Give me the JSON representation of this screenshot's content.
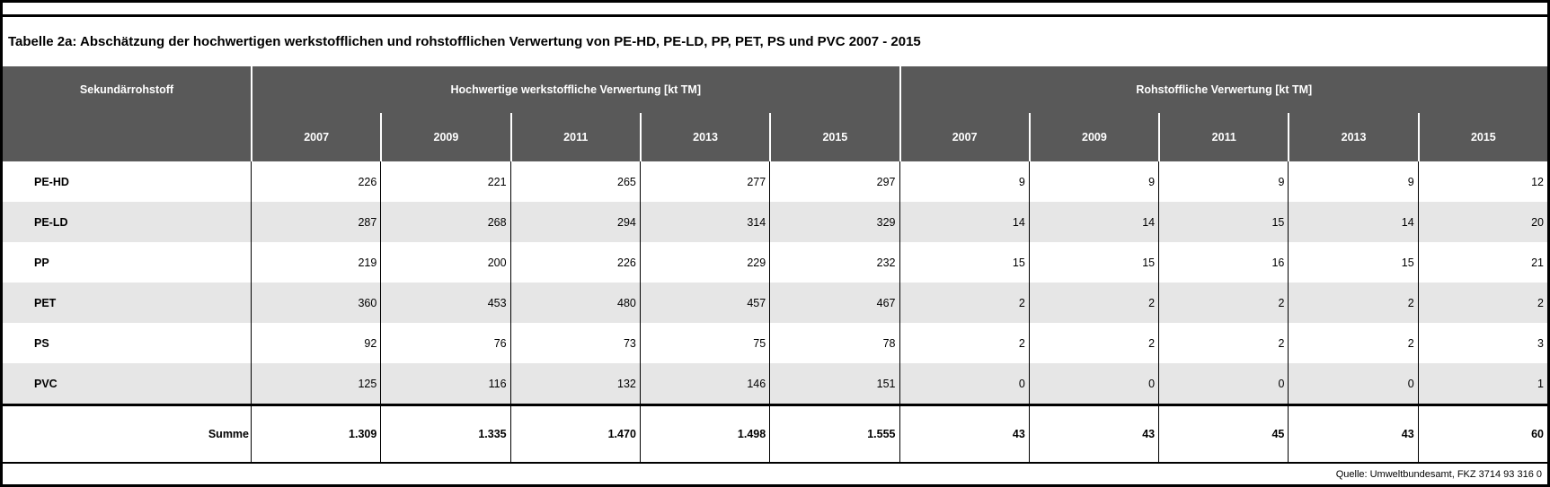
{
  "chart_data": {
    "type": "table",
    "title": "Tabelle 2a: Abschätzung der hochwertigen werkstofflichen und rohstofflichen Verwertung von PE-HD, PE-LD, PP, PET, PS und PVC 2007 - 2015",
    "corner_label": "Sekundärrohstoff",
    "column_groups": [
      {
        "label": "Hochwertige werkstoffliche Verwertung [kt TM]",
        "years": [
          "2007",
          "2009",
          "2011",
          "2013",
          "2015"
        ]
      },
      {
        "label": "Rohstoffliche Verwertung [kt TM]",
        "years": [
          "2007",
          "2009",
          "2011",
          "2013",
          "2015"
        ]
      }
    ],
    "rows": [
      {
        "label": "PE-HD",
        "values": [
          "226",
          "221",
          "265",
          "277",
          "297",
          "9",
          "9",
          "9",
          "9",
          "12"
        ]
      },
      {
        "label": "PE-LD",
        "values": [
          "287",
          "268",
          "294",
          "314",
          "329",
          "14",
          "14",
          "15",
          "14",
          "20"
        ]
      },
      {
        "label": "PP",
        "values": [
          "219",
          "200",
          "226",
          "229",
          "232",
          "15",
          "15",
          "16",
          "15",
          "21"
        ]
      },
      {
        "label": "PET",
        "values": [
          "360",
          "453",
          "480",
          "457",
          "467",
          "2",
          "2",
          "2",
          "2",
          "2"
        ]
      },
      {
        "label": "PS",
        "values": [
          "92",
          "76",
          "73",
          "75",
          "78",
          "2",
          "2",
          "2",
          "2",
          "3"
        ]
      },
      {
        "label": "PVC",
        "values": [
          "125",
          "116",
          "132",
          "146",
          "151",
          "0",
          "0",
          "0",
          "0",
          "1"
        ]
      }
    ],
    "total_row": {
      "label": "Summe",
      "values": [
        "1.309",
        "1.335",
        "1.470",
        "1.498",
        "1.555",
        "43",
        "43",
        "45",
        "43",
        "60"
      ]
    },
    "source_note": "Quelle: Umweltbundesamt, FKZ  3714 93 316 0"
  },
  "colors": {
    "header_bg": "#595959",
    "header_text": "#ffffff",
    "row_alt_bg": "#e6e6e6",
    "border": "#000000"
  }
}
